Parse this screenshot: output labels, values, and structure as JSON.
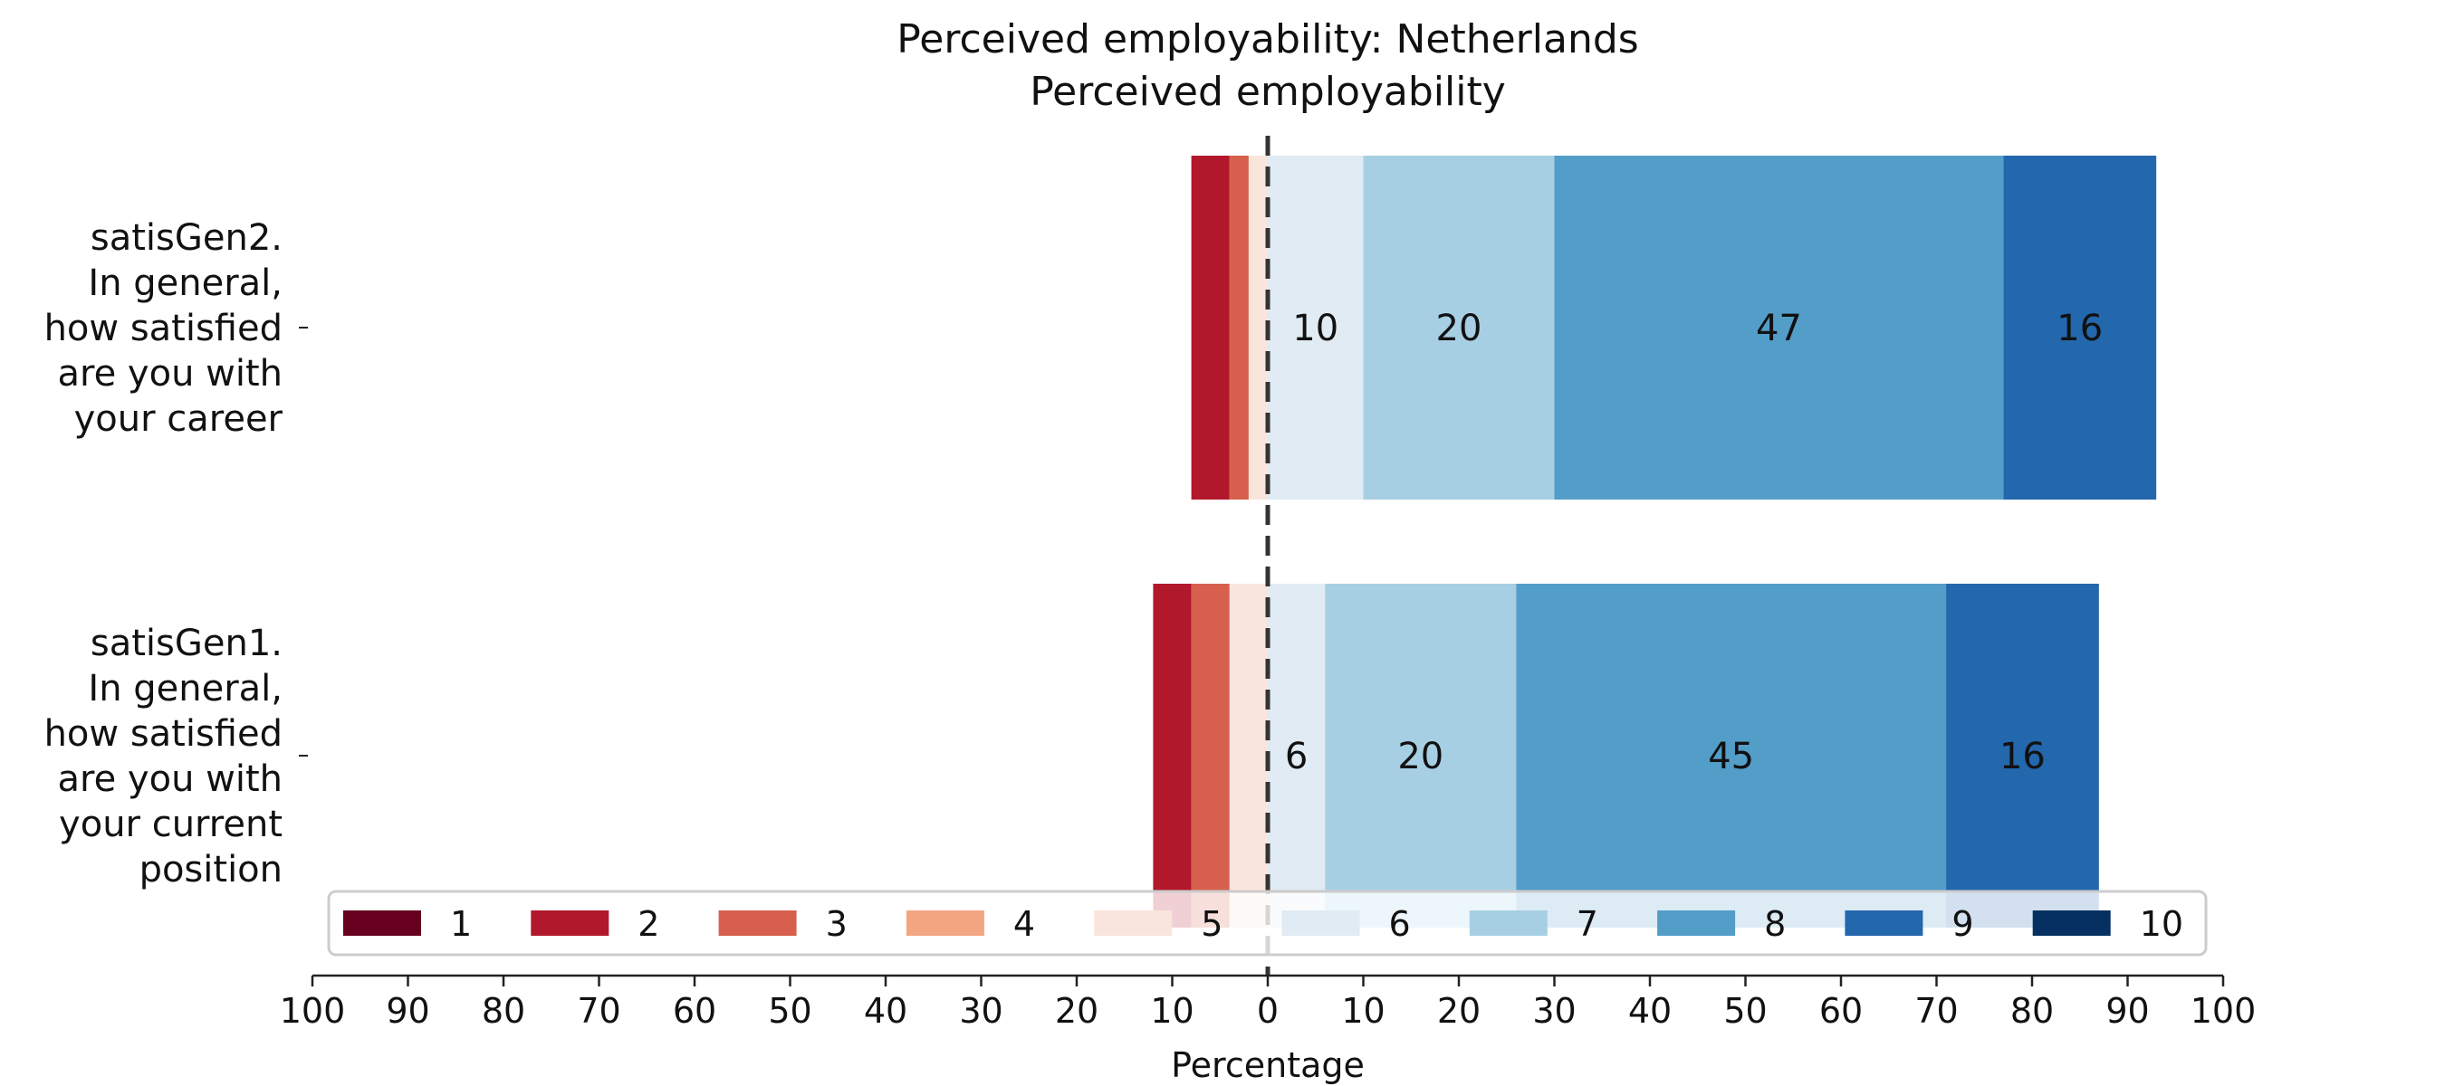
{
  "chart_data": {
    "type": "bar",
    "orientation": "horizontal",
    "stacked": true,
    "diverging": true,
    "title": "Perceived employability: Netherlands",
    "subtitle": "Perceived employability",
    "xlabel": "Percentage",
    "xlim": [
      -100,
      100
    ],
    "x_tick_values": [
      -100,
      -90,
      -80,
      -70,
      -60,
      -50,
      -40,
      -30,
      -20,
      -10,
      0,
      10,
      20,
      30,
      40,
      50,
      60,
      70,
      80,
      90,
      100
    ],
    "x_tick_labels": [
      "100",
      "90",
      "80",
      "70",
      "60",
      "50",
      "40",
      "30",
      "20",
      "10",
      "0",
      "10",
      "20",
      "30",
      "40",
      "50",
      "60",
      "70",
      "80",
      "90",
      "100"
    ],
    "center_line": 0,
    "grid": false,
    "legend_position": "bottom",
    "legend_columns": 10,
    "categories": [
      {
        "label_lines": [
          "satisGen2.",
          "In general,",
          "how satisfied",
          "are you with",
          "your career"
        ]
      },
      {
        "label_lines": [
          "satisGen1.",
          "In general,",
          "how satisfied",
          "are you with",
          "your current",
          "position"
        ]
      }
    ],
    "series": [
      {
        "name": "1",
        "color": "#67001f",
        "values": [
          0,
          0
        ],
        "side": "negative"
      },
      {
        "name": "2",
        "color": "#b2182b",
        "values": [
          4,
          4
        ],
        "side": "negative"
      },
      {
        "name": "3",
        "color": "#d6604d",
        "values": [
          2,
          4
        ],
        "side": "negative"
      },
      {
        "name": "4",
        "color": "#f4a582",
        "values": [
          0,
          0
        ],
        "side": "negative"
      },
      {
        "name": "5",
        "color": "#fae5dc",
        "values": [
          2,
          4
        ],
        "side": "negative"
      },
      {
        "name": "6",
        "color": "#e0ebf3",
        "values": [
          10,
          6
        ],
        "side": "positive"
      },
      {
        "name": "7",
        "color": "#a7cfe3",
        "values": [
          20,
          20
        ],
        "side": "positive"
      },
      {
        "name": "8",
        "color": "#539dc9",
        "values": [
          47,
          45
        ],
        "side": "positive"
      },
      {
        "name": "9",
        "color": "#2367ad",
        "values": [
          16,
          16
        ],
        "side": "positive"
      },
      {
        "name": "10",
        "color": "#053061",
        "values": [
          0,
          0
        ],
        "side": "positive"
      }
    ],
    "data_labels": [
      [
        null,
        null,
        null,
        null,
        null,
        "10",
        "20",
        "47",
        "16",
        null
      ],
      [
        null,
        null,
        null,
        null,
        null,
        "6",
        "20",
        "45",
        "16",
        null
      ]
    ]
  }
}
